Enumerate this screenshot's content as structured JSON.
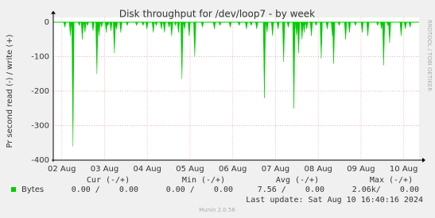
{
  "chart_data": {
    "type": "spike",
    "title": "Disk throughput for /dev/loop7 - by week",
    "ylabel": "Pr second read (-) / write (+)",
    "side_text": "RRDTOOL / TOBI OETIKER",
    "xlim": [
      1.8,
      10.36
    ],
    "xticks": [
      {
        "value": 2,
        "label": "02 Aug"
      },
      {
        "value": 3,
        "label": "03 Aug"
      },
      {
        "value": 4,
        "label": "04 Aug"
      },
      {
        "value": 5,
        "label": "05 Aug"
      },
      {
        "value": 6,
        "label": "06 Aug"
      },
      {
        "value": 7,
        "label": "07 Aug"
      },
      {
        "value": 8,
        "label": "08 Aug"
      },
      {
        "value": 9,
        "label": "09 Aug"
      },
      {
        "value": 10,
        "label": "10 Aug"
      }
    ],
    "ylim": [
      -400,
      10
    ],
    "yticks": [
      0,
      -100,
      -200,
      -300,
      -400
    ],
    "grid": true,
    "series": [
      {
        "name": "Bytes",
        "color": "#00cc00",
        "x": [
          2.07,
          2.2,
          2.26,
          2.41,
          2.48,
          2.54,
          2.6,
          2.73,
          2.82,
          2.87,
          2.93,
          3.04,
          3.08,
          3.15,
          3.23,
          3.28,
          3.38,
          3.53,
          3.75,
          3.9,
          3.99,
          4.14,
          4.21,
          4.33,
          4.4,
          4.51,
          4.57,
          4.66,
          4.73,
          4.81,
          4.87,
          4.98,
          5.11,
          5.29,
          5.57,
          5.7,
          5.94,
          6.15,
          6.32,
          6.43,
          6.56,
          6.74,
          6.8,
          6.93,
          7.06,
          7.19,
          7.3,
          7.43,
          7.49,
          7.54,
          7.62,
          7.67,
          7.73,
          7.84,
          7.95,
          8.07,
          8.21,
          8.33,
          8.36,
          8.49,
          8.64,
          8.73,
          8.87,
          9.03,
          9.16,
          9.39,
          9.48,
          9.53,
          9.63,
          9.67,
          9.94,
          10.04,
          10.15
        ],
        "values": [
          -15,
          -40,
          -360,
          -10,
          -50,
          -30,
          -10,
          -25,
          -150,
          -40,
          -15,
          -30,
          -10,
          -25,
          -90,
          -20,
          -30,
          -10,
          -10,
          -10,
          -20,
          -30,
          -10,
          -20,
          -30,
          -15,
          -40,
          -10,
          -30,
          -165,
          -20,
          -40,
          -100,
          -15,
          -20,
          -10,
          -15,
          -10,
          -20,
          -10,
          -20,
          -220,
          -30,
          -40,
          -20,
          -115,
          -15,
          -250,
          -40,
          -90,
          -50,
          -30,
          -20,
          -40,
          -10,
          -105,
          -20,
          -40,
          -120,
          -10,
          -50,
          -30,
          -10,
          -30,
          -40,
          -10,
          -20,
          -125,
          -10,
          -60,
          -40,
          -20,
          -15
        ]
      }
    ],
    "stat_headers": [
      "Cur (-/+)",
      "Min (-/+)",
      "Avg (-/+)",
      "Max (-/+)"
    ],
    "stats": [
      "0.00 /    0.00",
      "0.00 /    0.00",
      "7.56 /    0.00",
      "2.06k/    0.00"
    ],
    "last_update": "Last update: Sat Aug 10 16:40:16 2024",
    "footer": "Munin 2.0.56"
  }
}
